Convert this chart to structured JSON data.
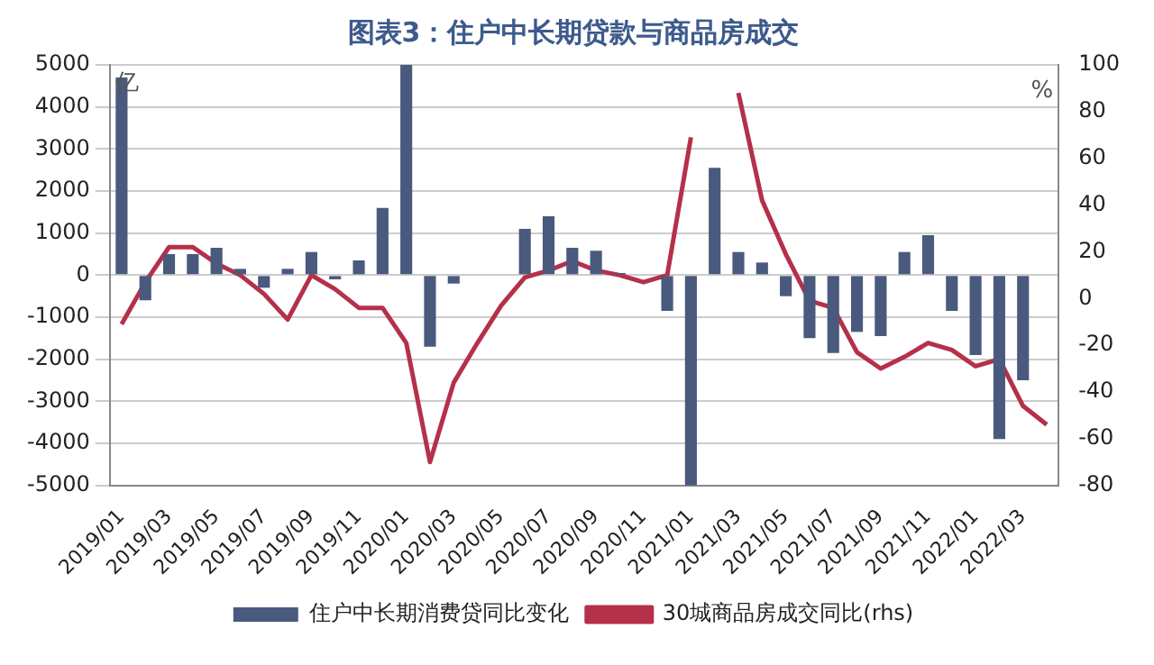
{
  "chart_data": {
    "type": "bar",
    "title": "图表3：住户中长期贷款与商品房成交",
    "ylabel": "亿",
    "y2label": "%",
    "categories": [
      "2019/01",
      null,
      "2019/03",
      null,
      "2019/05",
      null,
      "2019/07",
      null,
      "2019/09",
      null,
      "2019/11",
      null,
      "2020/01",
      null,
      "2020/03",
      null,
      "2020/05",
      null,
      "2020/07",
      null,
      "2020/09",
      null,
      "2020/11",
      null,
      "2021/01",
      null,
      "2021/03",
      null,
      "2021/05",
      null,
      "2021/07",
      null,
      "2021/09",
      null,
      "2021/11",
      null,
      "2022/01",
      null,
      "2022/03",
      null
    ],
    "series": [
      {
        "name": "住户中长期消费贷同比变化",
        "color": "#4a5a7e",
        "values": [
          4700,
          -600,
          500,
          500,
          650,
          150,
          -300,
          150,
          550,
          -100,
          350,
          1600,
          5000,
          -1700,
          -200,
          null,
          null,
          1100,
          1400,
          650,
          580,
          50,
          0,
          -850,
          -5000,
          2550,
          550,
          300,
          -500,
          -1500,
          -1850,
          -1350,
          -1450,
          550,
          950,
          -850,
          -1900,
          -3900,
          -2500,
          null
        ]
      },
      {
        "name": "30城商品房成交同比(rhs)",
        "type": "line",
        "axis": "y2",
        "color": "#b5304a",
        "values": [
          -11,
          7,
          22,
          22,
          15,
          10,
          2,
          -9,
          10,
          4,
          -4,
          -4,
          -19,
          -70,
          -36,
          -19,
          -3,
          9,
          12,
          16,
          12,
          10,
          7,
          10,
          69,
          null,
          88,
          42,
          19,
          -1,
          -4,
          -23,
          -30,
          -25,
          -19,
          -22,
          -29,
          -26,
          -46,
          -54
        ]
      }
    ],
    "ylim": [
      -5000,
      5000
    ],
    "yticks": [
      -5000,
      -4000,
      -3000,
      -2000,
      -1000,
      0,
      1000,
      2000,
      3000,
      4000,
      5000
    ],
    "y2lim": [
      -80,
      100
    ],
    "y2ticks": [
      -80,
      -60,
      -40,
      -20,
      0,
      20,
      40,
      60,
      80,
      100
    ],
    "grid": "y",
    "legend": "bottom",
    "marker": "none"
  }
}
